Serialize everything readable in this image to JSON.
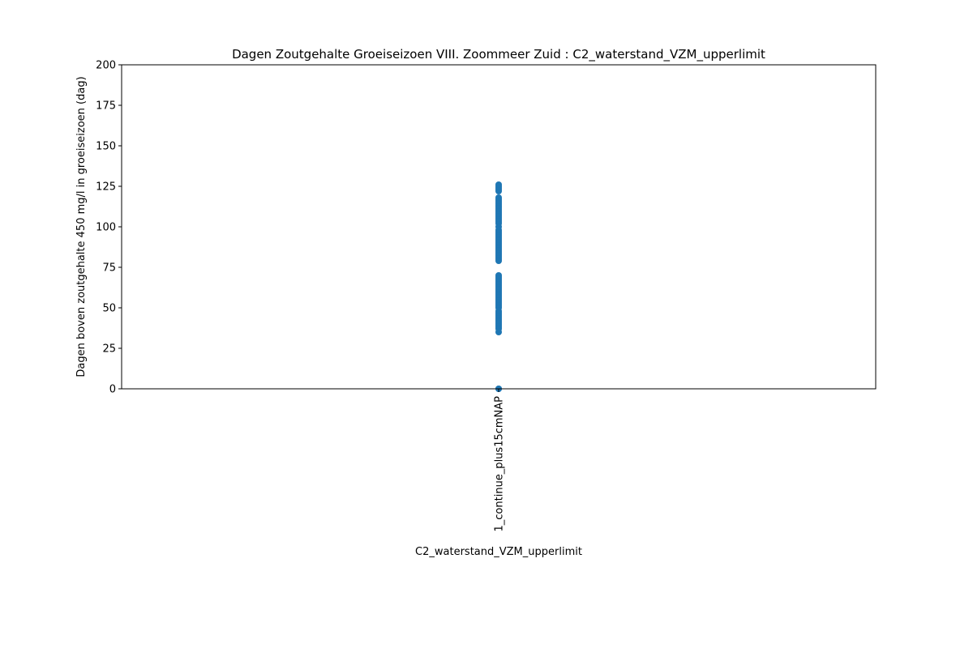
{
  "chart_data": {
    "type": "scatter",
    "title": "Dagen Zoutgehalte Groeiseizoen VIII. Zoommeer Zuid : C2_waterstand_VZM_upperlimit",
    "xlabel": "C2_waterstand_VZM_upperlimit",
    "ylabel": "Dagen boven zoutgehalte 450 mg/l in groeiseizoen (dag)",
    "categories": [
      "1_continue_plus15cmNAP"
    ],
    "ylim": [
      0,
      200
    ],
    "yticks": [
      0,
      25,
      50,
      75,
      100,
      125,
      150,
      175,
      200
    ],
    "grid": false,
    "legend": "none",
    "marker_color": "#1f77b4",
    "series": [
      {
        "category": "1_continue_plus15cmNAP",
        "values": [
          0,
          0,
          35,
          37,
          38,
          39,
          40,
          41,
          42,
          43,
          44,
          45,
          46,
          47,
          48,
          50,
          51,
          52,
          53,
          54,
          55,
          56,
          57,
          58,
          59,
          60,
          61,
          62,
          63,
          64,
          65,
          66,
          67,
          68,
          69,
          70,
          79,
          80,
          81,
          82,
          83,
          84,
          85,
          86,
          87,
          88,
          89,
          90,
          91,
          92,
          93,
          94,
          95,
          96,
          97,
          98,
          100,
          102,
          103,
          104,
          105,
          106,
          107,
          108,
          109,
          110,
          111,
          112,
          113,
          114,
          115,
          116,
          117,
          118,
          122,
          123,
          124,
          125,
          126
        ]
      }
    ]
  }
}
